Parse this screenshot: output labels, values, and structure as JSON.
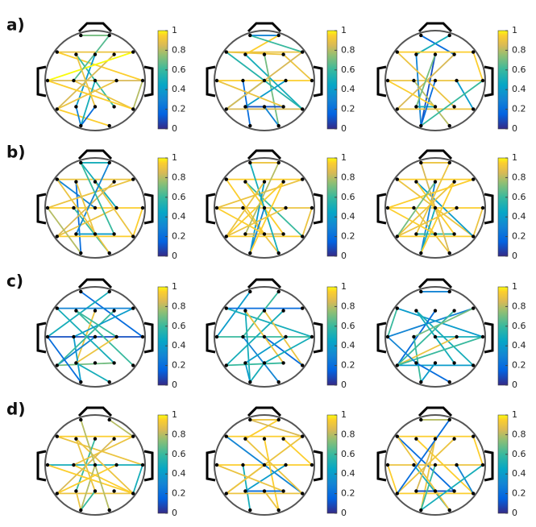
{
  "colorbar": {
    "lim": [
      0,
      1
    ],
    "ticks": [
      0,
      0.2,
      0.4,
      0.6,
      0.8,
      1
    ]
  },
  "rows": [
    {
      "label": "a)",
      "panels": [
        {
          "edges": [
            [
              0,
              1,
              0.7
            ],
            [
              2,
              6,
              0.9
            ],
            [
              2,
              11,
              0.95
            ],
            [
              7,
              11,
              0.85
            ],
            [
              3,
              15,
              0.6
            ],
            [
              4,
              13,
              0.4
            ],
            [
              8,
              16,
              0.9
            ],
            [
              12,
              18,
              0.95
            ],
            [
              13,
              17,
              0.3
            ],
            [
              9,
              17,
              0.5
            ],
            [
              5,
              12,
              0.85
            ],
            [
              6,
              7,
              1
            ],
            [
              10,
              12,
              0.9
            ],
            [
              14,
              17,
              0.2
            ],
            [
              1,
              8,
              0.65
            ],
            [
              3,
              14,
              0.9
            ],
            [
              11,
              16,
              0.8
            ],
            [
              7,
              16,
              0.95
            ]
          ]
        },
        {
          "edges": [
            [
              0,
              1,
              0.3
            ],
            [
              2,
              6,
              0.9
            ],
            [
              7,
              11,
              0.95
            ],
            [
              2,
              5,
              0.9
            ],
            [
              3,
              16,
              0.5
            ],
            [
              4,
              18,
              0.7
            ],
            [
              8,
              17,
              0.2
            ],
            [
              12,
              16,
              0.85
            ],
            [
              13,
              15,
              0.1
            ],
            [
              9,
              12,
              0.6
            ],
            [
              5,
              11,
              0.9
            ],
            [
              6,
              12,
              0.85
            ],
            [
              10,
              13,
              0.4
            ],
            [
              14,
              18,
              0.3
            ],
            [
              1,
              3,
              0.95
            ],
            [
              7,
              15,
              0.9
            ],
            [
              2,
              16,
              0.55
            ],
            [
              0,
              6,
              0.6
            ]
          ]
        },
        {
          "edges": [
            [
              0,
              5,
              0.2
            ],
            [
              1,
              3,
              0.5
            ],
            [
              2,
              6,
              0.95
            ],
            [
              7,
              11,
              0.9
            ],
            [
              3,
              17,
              0.3
            ],
            [
              4,
              17,
              0.1
            ],
            [
              8,
              18,
              0.8
            ],
            [
              12,
              16,
              0.9
            ],
            [
              14,
              13,
              0.5
            ],
            [
              9,
              17,
              0.2
            ],
            [
              5,
              12,
              0.85
            ],
            [
              6,
              11,
              0.95
            ],
            [
              10,
              16,
              0.4
            ],
            [
              2,
              15,
              0.9
            ],
            [
              7,
              14,
              0.95
            ],
            [
              11,
              17,
              0.6
            ],
            [
              4,
              13,
              0.7
            ]
          ]
        }
      ]
    },
    {
      "label": "b)",
      "panels": [
        {
          "edges": [
            [
              0,
              1,
              0.5
            ],
            [
              2,
              6,
              0.9
            ],
            [
              7,
              11,
              0.95
            ],
            [
              2,
              9,
              0.3
            ],
            [
              3,
              17,
              0.2
            ],
            [
              4,
              16,
              0.9
            ],
            [
              8,
              18,
              0.6
            ],
            [
              12,
              16,
              0.95
            ],
            [
              13,
              15,
              0.4
            ],
            [
              0,
              10,
              0.5
            ],
            [
              5,
              12,
              0.85
            ],
            [
              6,
              7,
              0.9
            ],
            [
              10,
              12,
              0.9
            ],
            [
              1,
              13,
              0.3
            ],
            [
              3,
              14,
              0.9
            ],
            [
              11,
              16,
              0.95
            ],
            [
              7,
              17,
              0.8
            ],
            [
              2,
              18,
              0.9
            ],
            [
              0,
              15,
              0.6
            ]
          ]
        },
        {
          "edges": [
            [
              0,
              1,
              0.9
            ],
            [
              2,
              6,
              0.95
            ],
            [
              7,
              11,
              0.9
            ],
            [
              2,
              14,
              0.95
            ],
            [
              3,
              16,
              0.6
            ],
            [
              4,
              17,
              0.4
            ],
            [
              8,
              18,
              0.9
            ],
            [
              12,
              16,
              0.95
            ],
            [
              13,
              15,
              0.85
            ],
            [
              9,
              17,
              0.3
            ],
            [
              5,
              12,
              0.95
            ],
            [
              6,
              7,
              0.9
            ],
            [
              10,
              12,
              0.9
            ],
            [
              1,
              13,
              0.8
            ],
            [
              3,
              15,
              0.95
            ],
            [
              11,
              16,
              0.9
            ],
            [
              7,
              14,
              0.95
            ],
            [
              0,
              18,
              0.5
            ],
            [
              4,
              12,
              0.9
            ],
            [
              5,
              17,
              0.95
            ]
          ]
        },
        {
          "edges": [
            [
              0,
              1,
              0.9
            ],
            [
              2,
              6,
              0.95
            ],
            [
              7,
              11,
              0.95
            ],
            [
              2,
              16,
              0.9
            ],
            [
              3,
              16,
              0.4
            ],
            [
              4,
              17,
              0.3
            ],
            [
              8,
              18,
              0.9
            ],
            [
              12,
              16,
              0.95
            ],
            [
              13,
              15,
              0.6
            ],
            [
              9,
              17,
              0.5
            ],
            [
              5,
              12,
              0.9
            ],
            [
              6,
              7,
              0.95
            ],
            [
              10,
              12,
              0.9
            ],
            [
              1,
              13,
              0.9
            ],
            [
              3,
              15,
              0.95
            ],
            [
              11,
              16,
              0.9
            ],
            [
              7,
              14,
              0.95
            ],
            [
              0,
              18,
              0.85
            ],
            [
              4,
              12,
              0.7
            ],
            [
              5,
              17,
              0.95
            ]
          ]
        }
      ]
    },
    {
      "label": "c)",
      "panels": [
        {
          "edges": [
            [
              0,
              11,
              0.2
            ],
            [
              1,
              7,
              0.5
            ],
            [
              2,
              6,
              0.3
            ],
            [
              7,
              11,
              0.1
            ],
            [
              3,
              16,
              0.6
            ],
            [
              4,
              13,
              0.9
            ],
            [
              8,
              17,
              0.4
            ],
            [
              12,
              15,
              0.7
            ],
            [
              13,
              18,
              0.5
            ],
            [
              9,
              12,
              0.3
            ],
            [
              5,
              12,
              0.6
            ],
            [
              6,
              8,
              0.4
            ],
            [
              10,
              13,
              0.9
            ],
            [
              7,
              17,
              0.2
            ],
            [
              3,
              10,
              0.6
            ],
            [
              2,
              15,
              0.5
            ]
          ]
        },
        {
          "edges": [
            [
              0,
              7,
              0.4
            ],
            [
              6,
              2,
              0.2
            ],
            [
              2,
              11,
              0.5
            ],
            [
              7,
              11,
              0.6
            ],
            [
              3,
              17,
              0.5
            ],
            [
              4,
              16,
              0.9
            ],
            [
              8,
              18,
              0.3
            ],
            [
              12,
              15,
              0.6
            ],
            [
              13,
              17,
              0.4
            ],
            [
              9,
              16,
              0.2
            ],
            [
              5,
              12,
              0.5
            ],
            [
              1,
              8,
              0.6
            ],
            [
              10,
              13,
              0.4
            ],
            [
              14,
              17,
              0.5
            ],
            [
              3,
              15,
              0.9
            ],
            [
              11,
              14,
              0.5
            ]
          ]
        },
        {
          "edges": [
            [
              0,
              1,
              0.3
            ],
            [
              6,
              7,
              0.3
            ],
            [
              2,
              7,
              0.6
            ],
            [
              2,
              11,
              0.4
            ],
            [
              3,
              16,
              0.5
            ],
            [
              4,
              12,
              0.2
            ],
            [
              8,
              17,
              0.6
            ],
            [
              12,
              16,
              0.4
            ],
            [
              13,
              18,
              0.2
            ],
            [
              9,
              11,
              0.5
            ],
            [
              5,
              12,
              0.6
            ],
            [
              6,
              8,
              0.7
            ],
            [
              10,
              12,
              0.9
            ],
            [
              14,
              17,
              0.4
            ],
            [
              3,
              15,
              0.5
            ],
            [
              11,
              12,
              0.6
            ],
            [
              7,
              13,
              0.3
            ]
          ]
        }
      ]
    },
    {
      "label": "d)",
      "panels": [
        {
          "edges": [
            [
              1,
              6,
              0.8
            ],
            [
              2,
              6,
              0.95
            ],
            [
              2,
              11,
              0.9
            ],
            [
              7,
              11,
              0.5
            ],
            [
              3,
              16,
              0.9
            ],
            [
              4,
              13,
              0.6
            ],
            [
              8,
              16,
              0.95
            ],
            [
              12,
              16,
              0.9
            ],
            [
              13,
              17,
              0.9
            ],
            [
              9,
              17,
              0.8
            ],
            [
              5,
              12,
              0.85
            ],
            [
              6,
              8,
              0.9
            ],
            [
              10,
              12,
              0.95
            ],
            [
              14,
              17,
              0.6
            ],
            [
              3,
              14,
              0.9
            ],
            [
              11,
              16,
              0.5
            ],
            [
              7,
              16,
              0.95
            ],
            [
              0,
              18,
              0.8
            ]
          ]
        },
        {
          "edges": [
            [
              0,
              1,
              0.9
            ],
            [
              2,
              6,
              0.95
            ],
            [
              7,
              11,
              0.95
            ],
            [
              2,
              16,
              0.3
            ],
            [
              3,
              16,
              0.9
            ],
            [
              4,
              18,
              0.95
            ],
            [
              8,
              17,
              0.5
            ],
            [
              12,
              16,
              0.9
            ],
            [
              13,
              15,
              0.2
            ],
            [
              9,
              12,
              0.9
            ],
            [
              5,
              11,
              0.95
            ],
            [
              6,
              12,
              0.9
            ],
            [
              10,
              13,
              0.4
            ],
            [
              14,
              18,
              0.9
            ],
            [
              1,
              3,
              0.95
            ],
            [
              7,
              15,
              0.9
            ],
            [
              0,
              6,
              0.85
            ]
          ]
        },
        {
          "edges": [
            [
              0,
              1,
              0.8
            ],
            [
              2,
              6,
              0.95
            ],
            [
              7,
              11,
              0.9
            ],
            [
              2,
              15,
              0.2
            ],
            [
              3,
              16,
              0.95
            ],
            [
              4,
              17,
              0.9
            ],
            [
              8,
              18,
              0.5
            ],
            [
              12,
              16,
              0.95
            ],
            [
              13,
              15,
              0.1
            ],
            [
              9,
              17,
              0.6
            ],
            [
              5,
              12,
              0.9
            ],
            [
              6,
              11,
              0.95
            ],
            [
              10,
              16,
              0.3
            ],
            [
              2,
              18,
              0.9
            ],
            [
              7,
              12,
              0.95
            ],
            [
              11,
              17,
              0.5
            ],
            [
              4,
              13,
              0.85
            ],
            [
              1,
              12,
              0.2
            ]
          ]
        }
      ]
    }
  ]
}
